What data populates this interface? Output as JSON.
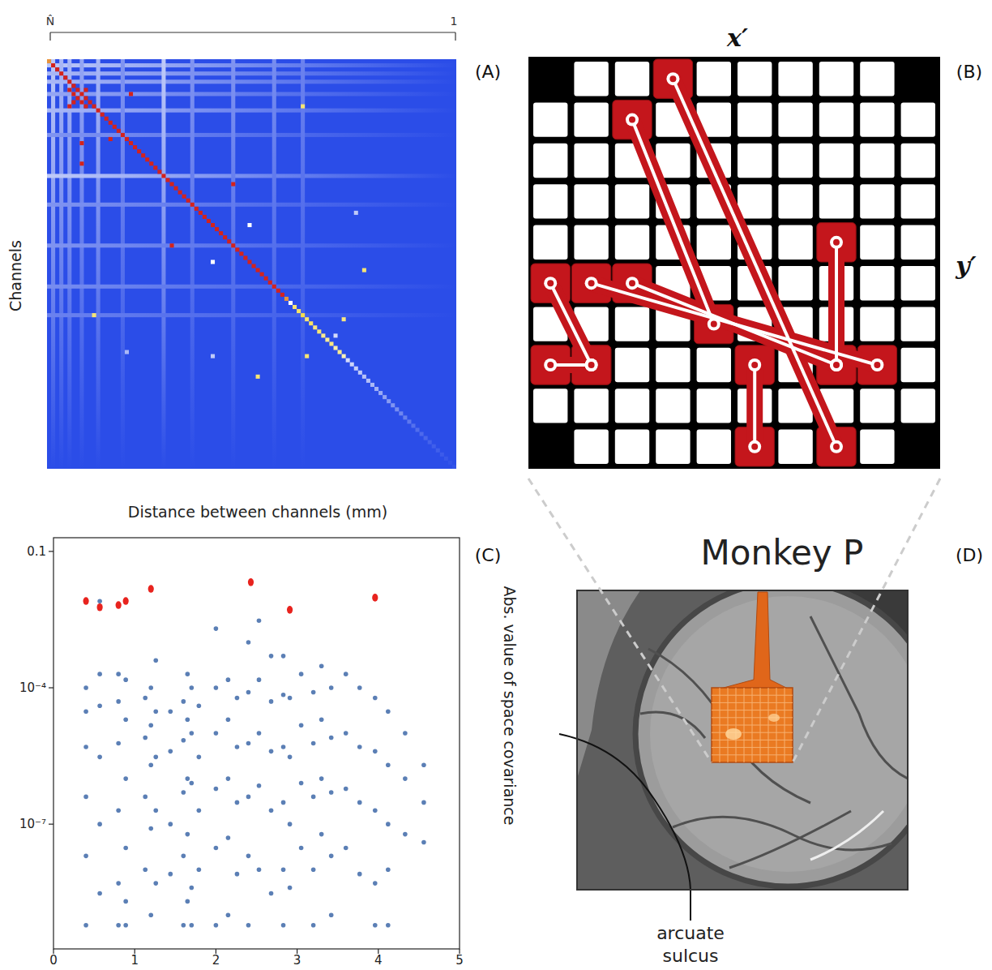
{
  "panel_labels": [
    "(A)",
    "(B)",
    "(C)",
    "(D)"
  ],
  "chart_data": [
    {
      "type": "heatmap",
      "ylabel": "Channels",
      "ruler_labels": [
        "N̂",
        "1"
      ],
      "background": 0,
      "stripes": [
        {
          "index": 1,
          "value": 0.35
        },
        {
          "index": 3,
          "value": 0.3
        },
        {
          "index": 5,
          "value": 0.3
        },
        {
          "index": 8,
          "value": 0.25
        },
        {
          "index": 12,
          "value": 0.3
        },
        {
          "index": 18,
          "value": 0.2
        },
        {
          "index": 28,
          "value": 0.35
        },
        {
          "index": 35,
          "value": 0.2
        },
        {
          "index": 45,
          "value": 0.2
        },
        {
          "index": 55,
          "value": 0.18
        },
        {
          "index": 62,
          "value": 0.15
        }
      ],
      "diagonal": [
        0.85,
        1,
        1,
        1,
        1,
        1,
        1,
        1,
        1,
        1,
        1,
        1,
        1,
        1,
        1,
        1,
        1,
        1,
        1,
        1,
        1,
        1,
        1,
        1,
        1,
        1,
        1,
        1,
        1,
        1,
        1,
        1,
        1,
        1,
        1,
        1,
        1,
        1,
        1,
        1,
        1,
        1,
        1,
        1,
        1,
        1,
        1,
        1,
        1,
        1,
        1,
        1,
        1,
        1,
        1,
        1,
        1,
        1,
        0.85,
        0.5,
        0.7,
        0.72,
        0.75,
        0.7,
        0.72,
        0.68,
        0.7,
        0.66,
        0.65,
        0.68,
        0.62,
        0.66,
        0.6,
        0.4,
        0.38,
        0.36,
        0.35,
        0.33,
        0.32,
        0.3,
        0.28,
        0.26,
        0.24,
        0.22,
        0.2,
        0.18,
        0.16,
        0.14,
        0.12,
        0.1,
        0.09,
        0.08,
        0.07,
        0.06,
        0.05,
        0.05,
        0.04,
        0.03,
        0.02,
        0.02
      ],
      "cells": [
        [
          9,
          7,
          1
        ],
        [
          7,
          5,
          1
        ],
        [
          8,
          6,
          1
        ],
        [
          10,
          8,
          1
        ],
        [
          11,
          9,
          1
        ],
        [
          7,
          9,
          1
        ],
        [
          10,
          6,
          1
        ],
        [
          11,
          5,
          1
        ],
        [
          8,
          20,
          1
        ],
        [
          19,
          15,
          1
        ],
        [
          20,
          8,
          1
        ],
        [
          25,
          8,
          1
        ],
        [
          30,
          45,
          1
        ],
        [
          45,
          30,
          1
        ],
        [
          11,
          62,
          0.7
        ],
        [
          40,
          49,
          0.5
        ],
        [
          37,
          75,
          0.35
        ],
        [
          49,
          40,
          0.5
        ],
        [
          51,
          77,
          0.7
        ],
        [
          62,
          11,
          0.7
        ],
        [
          63,
          72,
          0.68
        ],
        [
          72,
          63,
          0.7
        ],
        [
          77,
          51,
          0.7
        ],
        [
          72,
          40,
          0.35
        ],
        [
          67,
          70,
          0.4
        ],
        [
          71,
          19,
          0.3
        ]
      ]
    },
    {
      "type": "scatter",
      "xlabel": "Distance between channels (mm)",
      "ylabel": "Abs. value of space covariance",
      "log": "y",
      "xlim": [
        0,
        5
      ],
      "xticks": [
        0,
        1,
        2,
        3,
        4,
        5
      ],
      "ylim": [
        1.8e-10,
        0.2
      ],
      "yticks": [
        0.1,
        {
          "value": 0.0001,
          "label": "10⁻⁴"
        },
        {
          "value": 1e-07,
          "label": "10⁻⁷"
        }
      ],
      "series": [
        {
          "color": "#5b7fb5",
          "marker": "circle",
          "x": [
            0.4,
            0.4,
            0.4,
            0.4,
            0.4,
            0.4,
            0.57,
            0.57,
            0.57,
            0.57,
            0.57,
            0.57,
            0.8,
            0.8,
            0.8,
            0.8,
            0.8,
            0.8,
            0.89,
            0.89,
            0.89,
            0.89,
            0.89,
            0.89,
            1.13,
            1.13,
            1.13,
            1.13,
            1.2,
            1.2,
            1.2,
            1.2,
            1.2,
            1.26,
            1.26,
            1.26,
            1.26,
            1.26,
            1.44,
            1.44,
            1.44,
            1.44,
            1.6,
            1.6,
            1.6,
            1.6,
            1.6,
            1.65,
            1.65,
            1.65,
            1.65,
            1.65,
            1.7,
            1.7,
            1.7,
            1.7,
            1.7,
            1.79,
            1.79,
            1.79,
            1.79,
            2.0,
            2.0,
            2.0,
            2.0,
            2.0,
            2.0,
            2.15,
            2.15,
            2.15,
            2.15,
            2.15,
            2.26,
            2.26,
            2.26,
            2.26,
            2.4,
            2.4,
            2.4,
            2.4,
            2.4,
            2.4,
            2.53,
            2.53,
            2.53,
            2.53,
            2.53,
            2.68,
            2.68,
            2.68,
            2.68,
            2.68,
            2.83,
            2.83,
            2.83,
            2.83,
            2.83,
            2.83,
            2.91,
            2.91,
            2.91,
            2.91,
            3.05,
            3.05,
            3.05,
            3.05,
            3.2,
            3.2,
            3.2,
            3.2,
            3.2,
            3.3,
            3.3,
            3.3,
            3.3,
            3.42,
            3.42,
            3.42,
            3.42,
            3.42,
            3.6,
            3.6,
            3.6,
            3.6,
            3.77,
            3.77,
            3.77,
            3.77,
            3.96,
            3.96,
            3.96,
            3.96,
            3.96,
            4.12,
            4.12,
            4.12,
            4.12,
            4.12,
            4.33,
            4.33,
            4.33,
            4.56,
            4.56,
            4.56
          ],
          "values": [
            0.0001,
            3e-05,
            5e-06,
            4e-07,
            2e-08,
            6e-10,
            0.008,
            0.0002,
            4e-05,
            3e-06,
            1e-07,
            3e-09,
            0.0002,
            5e-05,
            6e-06,
            2e-07,
            5e-09,
            6e-10,
            0.00015,
            2e-05,
            1e-06,
            3e-08,
            2e-09,
            6e-10,
            6e-05,
            8e-06,
            4e-07,
            1e-08,
            0.0001,
            1.5e-05,
            2e-06,
            8e-08,
            1e-09,
            0.0004,
            3e-05,
            3e-06,
            2e-07,
            5e-09,
            3e-05,
            4e-06,
            1e-07,
            8e-09,
            5e-05,
            7e-06,
            5e-07,
            2e-08,
            6e-10,
            0.0002,
            2e-05,
            1e-06,
            6e-08,
            2e-09,
            0.0001,
            1e-05,
            8e-07,
            4e-09,
            6e-10,
            4e-05,
            3e-06,
            2e-07,
            1e-08,
            0.002,
            0.0001,
            1e-05,
            6e-07,
            3e-08,
            6e-10,
            0.00015,
            2e-05,
            1e-06,
            5e-08,
            1e-09,
            6e-05,
            5e-06,
            3e-07,
            8e-09,
            0.001,
            8e-05,
            6e-06,
            4e-07,
            2e-08,
            6e-10,
            0.003,
            0.00015,
            1e-05,
            7e-07,
            1e-08,
            0.0005,
            5e-05,
            4e-06,
            2e-07,
            3e-09,
            0.0005,
            7e-05,
            5e-06,
            3e-07,
            1e-08,
            6e-10,
            6e-05,
            3e-06,
            1e-07,
            4e-09,
            0.0002,
            1.5e-05,
            8e-07,
            3e-08,
            8e-05,
            6e-06,
            4e-07,
            1e-08,
            6e-10,
            0.0003,
            2e-05,
            1e-06,
            6e-08,
            0.0001,
            8e-06,
            5e-07,
            2e-08,
            1e-09,
            0.0002,
            1e-05,
            6e-07,
            3e-08,
            0.0001,
            5e-06,
            3e-07,
            8e-09,
            6e-05,
            4e-06,
            2e-07,
            5e-09,
            6e-10,
            3e-05,
            2e-06,
            1e-07,
            1e-08,
            6e-10,
            1e-05,
            1e-06,
            6e-08,
            2e-06,
            3e-07,
            4e-08
          ]
        },
        {
          "color": "#e8231e",
          "marker": "oval",
          "x": [
            0.4,
            0.57,
            0.8,
            0.89,
            1.2,
            2.43,
            2.91,
            3.96
          ],
          "values": [
            0.0081,
            0.0059,
            0.0066,
            0.0081,
            0.015,
            0.021,
            0.0052,
            0.0096
          ]
        }
      ]
    }
  ],
  "electrode_grid": {
    "x_label": "x′",
    "y_label": "y′",
    "cols": 10,
    "rows": 10,
    "missing": [
      [
        0,
        0
      ],
      [
        9,
        0
      ],
      [
        0,
        9
      ],
      [
        9,
        9
      ]
    ],
    "pairs": [
      [
        [
          3,
          0
        ],
        [
          7,
          9
        ]
      ],
      [
        [
          2,
          1
        ],
        [
          4,
          6
        ]
      ],
      [
        [
          7,
          4
        ],
        [
          7,
          7
        ]
      ],
      [
        [
          0,
          5
        ],
        [
          1,
          7
        ]
      ],
      [
        [
          0,
          7
        ],
        [
          1,
          7
        ]
      ],
      [
        [
          1,
          5
        ],
        [
          8,
          7
        ]
      ],
      [
        [
          2,
          5
        ],
        [
          7,
          7
        ]
      ],
      [
        [
          5,
          7
        ],
        [
          5,
          9
        ]
      ]
    ]
  },
  "photo": {
    "title": "Monkey P",
    "label": "arcuate sulcus"
  }
}
